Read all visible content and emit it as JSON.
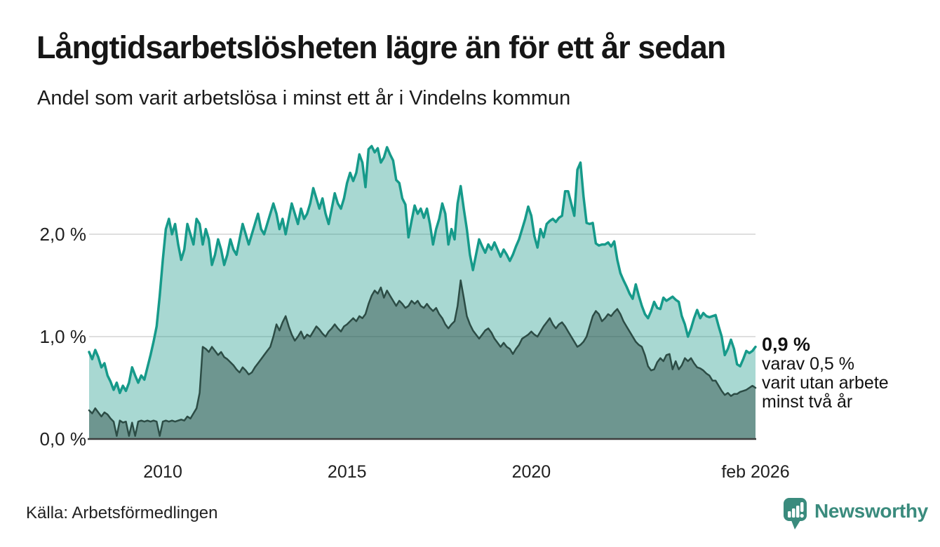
{
  "header": {
    "title": "Långtidsarbetslösheten lägre än för ett år sedan",
    "subtitle": "Andel som varit arbetslösa i minst ett år i Vindelns kommun"
  },
  "chart_data": {
    "type": "area",
    "title": "Långtidsarbetslösheten lägre än för ett år sedan",
    "subtitle": "Andel som varit arbetslösa i minst ett år i Vindelns kommun",
    "unit": "%",
    "x_start": 2008.0,
    "x_end": 2026.0833,
    "ylim": [
      0,
      3.0
    ],
    "grid": true,
    "x_ticks": [
      {
        "label": "2010",
        "year": 2010.0
      },
      {
        "label": "2015",
        "year": 2015.0
      },
      {
        "label": "2020",
        "year": 2020.0
      },
      {
        "label": "feb 2026",
        "year": 2026.0833
      }
    ],
    "y_ticks": [
      {
        "label": "0,0 %",
        "value": 0
      },
      {
        "label": "1,0 %",
        "value": 1
      },
      {
        "label": "2,0 %",
        "value": 2
      }
    ],
    "colors": {
      "line_1yr": "#169a8a",
      "fill_1yr": "rgba(26,153,138,0.38)",
      "line_2yr": "#2c4c45",
      "fill_2yr": "rgba(40,72,64,0.45)",
      "gridline": "#dfdfdf",
      "baseline": "#3d3d3d"
    },
    "series": [
      {
        "name": "Arbetslösa minst ett år",
        "frequency": "monthly",
        "first_month": "2008-01",
        "last_month": "2026-02",
        "last_value": 0.9,
        "values": [
          0.85,
          0.78,
          0.87,
          0.8,
          0.7,
          0.74,
          0.62,
          0.56,
          0.48,
          0.55,
          0.45,
          0.52,
          0.47,
          0.55,
          0.7,
          0.62,
          0.55,
          0.62,
          0.58,
          0.7,
          0.82,
          0.95,
          1.1,
          1.4,
          1.75,
          2.05,
          2.15,
          2.0,
          2.1,
          1.9,
          1.75,
          1.85,
          2.1,
          2.0,
          1.9,
          2.15,
          2.1,
          1.9,
          2.05,
          1.95,
          1.7,
          1.8,
          1.95,
          1.85,
          1.7,
          1.8,
          1.95,
          1.85,
          1.8,
          1.95,
          2.1,
          2.0,
          1.9,
          2.0,
          2.1,
          2.2,
          2.05,
          2.0,
          2.1,
          2.2,
          2.3,
          2.2,
          2.05,
          2.15,
          2.0,
          2.15,
          2.3,
          2.2,
          2.1,
          2.25,
          2.15,
          2.2,
          2.3,
          2.45,
          2.35,
          2.25,
          2.35,
          2.2,
          2.1,
          2.25,
          2.4,
          2.3,
          2.25,
          2.35,
          2.5,
          2.6,
          2.52,
          2.6,
          2.78,
          2.7,
          2.46,
          2.83,
          2.86,
          2.8,
          2.84,
          2.7,
          2.75,
          2.85,
          2.78,
          2.72,
          2.53,
          2.5,
          2.35,
          2.29,
          1.97,
          2.13,
          2.28,
          2.2,
          2.25,
          2.16,
          2.25,
          2.1,
          1.9,
          2.05,
          2.15,
          2.3,
          2.2,
          1.9,
          2.05,
          1.95,
          2.3,
          2.47,
          2.25,
          2.05,
          1.8,
          1.65,
          1.8,
          1.95,
          1.88,
          1.82,
          1.9,
          1.85,
          1.92,
          1.85,
          1.78,
          1.85,
          1.8,
          1.74,
          1.8,
          1.88,
          1.95,
          2.05,
          2.15,
          2.27,
          2.18,
          1.98,
          1.87,
          2.05,
          1.97,
          2.1,
          2.13,
          2.15,
          2.12,
          2.16,
          2.18,
          2.42,
          2.42,
          2.3,
          2.18,
          2.63,
          2.7,
          2.37,
          2.11,
          2.1,
          2.11,
          1.91,
          1.89,
          1.9,
          1.9,
          1.92,
          1.88,
          1.93,
          1.75,
          1.62,
          1.55,
          1.49,
          1.42,
          1.37,
          1.51,
          1.4,
          1.3,
          1.22,
          1.18,
          1.25,
          1.34,
          1.28,
          1.27,
          1.38,
          1.35,
          1.37,
          1.39,
          1.36,
          1.34,
          1.2,
          1.12,
          1.0,
          1.08,
          1.18,
          1.26,
          1.18,
          1.23,
          1.2,
          1.19,
          1.2,
          1.21,
          1.1,
          1.0,
          0.82,
          0.88,
          0.97,
          0.88,
          0.73,
          0.71,
          0.78,
          0.86,
          0.84,
          0.86,
          0.9
        ]
      },
      {
        "name": "Arbetslösa minst två år",
        "frequency": "monthly",
        "first_month": "2008-01",
        "last_month": "2026-02",
        "last_value": 0.5,
        "values": [
          0.28,
          0.25,
          0.3,
          0.26,
          0.22,
          0.26,
          0.24,
          0.2,
          0.17,
          0.03,
          0.18,
          0.16,
          0.17,
          0.03,
          0.16,
          0.03,
          0.17,
          0.18,
          0.17,
          0.18,
          0.17,
          0.18,
          0.17,
          0.03,
          0.17,
          0.18,
          0.17,
          0.18,
          0.17,
          0.18,
          0.19,
          0.18,
          0.22,
          0.2,
          0.25,
          0.3,
          0.45,
          0.9,
          0.88,
          0.85,
          0.9,
          0.86,
          0.82,
          0.85,
          0.8,
          0.78,
          0.75,
          0.72,
          0.68,
          0.65,
          0.7,
          0.67,
          0.63,
          0.65,
          0.7,
          0.74,
          0.78,
          0.82,
          0.86,
          0.9,
          1.0,
          1.12,
          1.06,
          1.14,
          1.2,
          1.1,
          1.02,
          0.96,
          1.0,
          1.05,
          0.98,
          1.02,
          1.0,
          1.05,
          1.1,
          1.07,
          1.03,
          1.0,
          1.05,
          1.08,
          1.12,
          1.08,
          1.05,
          1.1,
          1.12,
          1.15,
          1.18,
          1.15,
          1.2,
          1.18,
          1.22,
          1.32,
          1.4,
          1.45,
          1.42,
          1.48,
          1.38,
          1.45,
          1.4,
          1.35,
          1.3,
          1.35,
          1.32,
          1.28,
          1.3,
          1.35,
          1.32,
          1.35,
          1.3,
          1.28,
          1.32,
          1.28,
          1.25,
          1.28,
          1.22,
          1.18,
          1.12,
          1.08,
          1.12,
          1.15,
          1.3,
          1.55,
          1.38,
          1.2,
          1.12,
          1.06,
          1.02,
          0.98,
          1.02,
          1.06,
          1.08,
          1.04,
          0.98,
          0.94,
          0.9,
          0.94,
          0.9,
          0.88,
          0.83,
          0.88,
          0.92,
          0.98,
          1.0,
          1.02,
          1.05,
          1.02,
          1.0,
          1.05,
          1.1,
          1.14,
          1.18,
          1.12,
          1.08,
          1.12,
          1.14,
          1.1,
          1.05,
          1.0,
          0.95,
          0.9,
          0.92,
          0.95,
          1.0,
          1.1,
          1.2,
          1.25,
          1.22,
          1.15,
          1.18,
          1.22,
          1.2,
          1.24,
          1.27,
          1.22,
          1.15,
          1.1,
          1.05,
          1.0,
          0.95,
          0.92,
          0.9,
          0.82,
          0.71,
          0.67,
          0.68,
          0.75,
          0.79,
          0.76,
          0.82,
          0.83,
          0.68,
          0.76,
          0.68,
          0.72,
          0.79,
          0.76,
          0.79,
          0.74,
          0.7,
          0.69,
          0.67,
          0.64,
          0.62,
          0.57,
          0.57,
          0.52,
          0.47,
          0.43,
          0.45,
          0.42,
          0.44,
          0.44,
          0.46,
          0.47,
          0.48,
          0.5,
          0.52,
          0.5
        ]
      }
    ],
    "annotation": {
      "headline": "0,9 %",
      "line1": "varav 0,5 %",
      "line2": "varit utan arbete",
      "line3": "minst två år"
    }
  },
  "footer": {
    "source": "Källa: Arbetsförmedlingen",
    "logo_text": "Newsworthy",
    "logo_color": "#3a8b7d"
  }
}
